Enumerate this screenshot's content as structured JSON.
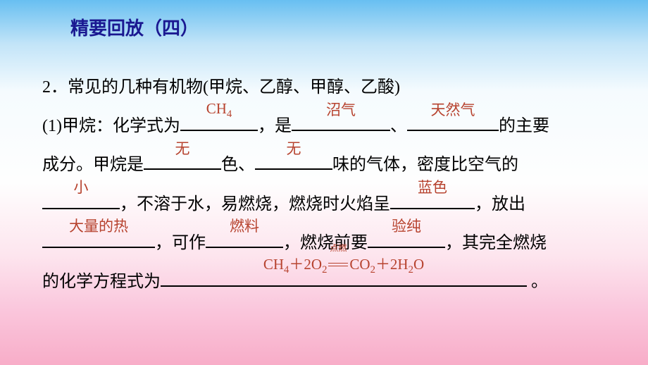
{
  "title": "精要回放（四）",
  "heading": "2．常见的几种有机物(甲烷、乙醇、甲醇、乙酸)",
  "line1_pre": "(1)甲烷：化学式为",
  "blank_formula": "CH",
  "blank_formula_sub": "4",
  "line1_mid1": "，是",
  "blank_a": "沼气",
  "line1_mid2": "、",
  "blank_b": "天然气",
  "line1_end": "的主要",
  "line2_pre": "成分。甲烷是",
  "blank_c": "无",
  "line2_mid1": "色、",
  "blank_d": "无",
  "line2_end": "味的气体，密度比空气的",
  "blank_e": "小",
  "line3_mid": "，不溶于水，易燃烧，燃烧时火焰呈",
  "blank_f": "蓝色",
  "line3_end": "，放出",
  "blank_g": "大量的热",
  "line4_mid1": "，可作",
  "blank_h": "燃料",
  "line4_mid2": "，燃烧前要",
  "blank_i": "验纯",
  "line4_end": "，其完全燃烧",
  "line5_pre": "的化学方程式为",
  "eq_l1": "CH",
  "eq_l1s": "4",
  "eq_plus1": "＋2O",
  "eq_l2s": "2",
  "eq_cond": "点燃",
  "eq_r1": "CO",
  "eq_r1s": "2",
  "eq_plus2": "＋2H",
  "eq_r2s": "2",
  "eq_r3": "O",
  "line5_end": "。",
  "widths": {
    "formula": 110,
    "a": 140,
    "b": 130,
    "c": 110,
    "d": 110,
    "e": 110,
    "f": 120,
    "g": 160,
    "h": 110,
    "i": 110,
    "eq": 520
  },
  "colors": {
    "title": "#1a1891",
    "answer": "#b7432f",
    "text": "#000000"
  }
}
